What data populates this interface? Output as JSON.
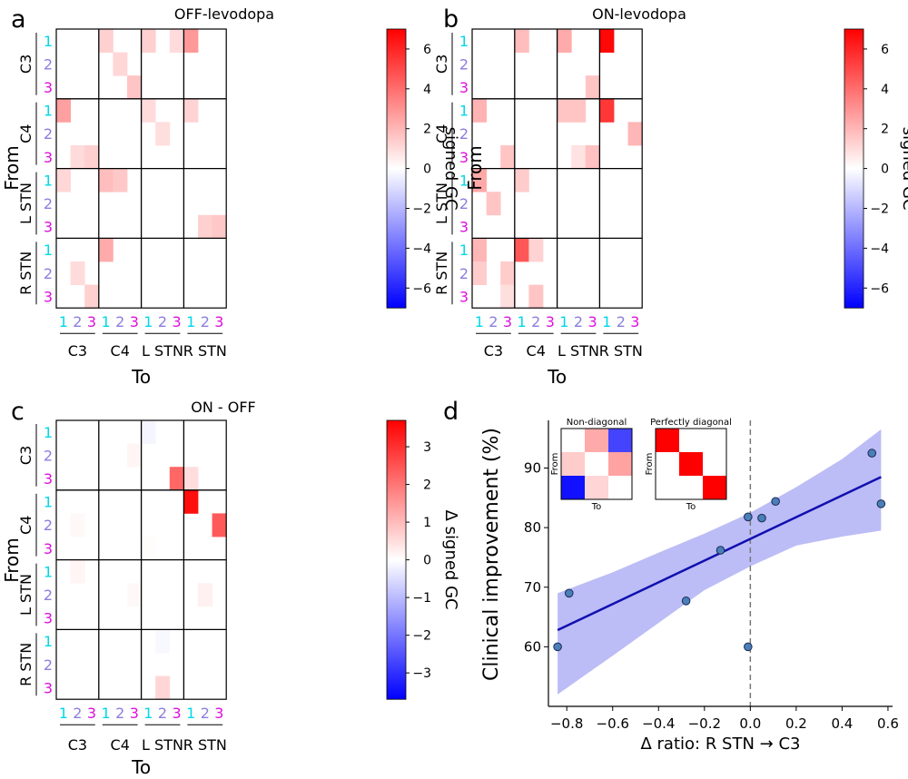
{
  "figure": {
    "panel_letters": [
      "a",
      "b",
      "c",
      "d"
    ]
  },
  "chart_data": [
    {
      "type": "heatmap",
      "panel": "a",
      "title": "OFF-levodopa",
      "xlabel": "To",
      "ylabel": "From",
      "groups": [
        "C3",
        "C4",
        "L STN",
        "R STN"
      ],
      "row_groups": [
        "C3",
        "C4",
        "L STN",
        "R STN"
      ],
      "tick_labels": [
        "1",
        "2",
        "3"
      ],
      "colorbar": {
        "label": "signed GC",
        "vmin": -7,
        "vmax": 7,
        "ticks": [
          6,
          4,
          2,
          0,
          -2,
          -4,
          -6
        ],
        "tick_labels": [
          "6",
          "4",
          "2",
          "0",
          "−2",
          "−4",
          "−6"
        ]
      },
      "matrix": [
        [
          0,
          0,
          0,
          1.3,
          0,
          0,
          1.3,
          0,
          1.0,
          2.8,
          0,
          0
        ],
        [
          0,
          0,
          0,
          0,
          1.1,
          0,
          0,
          0,
          0,
          0,
          0,
          0
        ],
        [
          0,
          0,
          0,
          0,
          0,
          1.6,
          0,
          0,
          0,
          0,
          0,
          0
        ],
        [
          2.6,
          0,
          0,
          0,
          0,
          0,
          1.0,
          0,
          0,
          1.2,
          0,
          0
        ],
        [
          0,
          0,
          0,
          0,
          0,
          0,
          0,
          0.9,
          0,
          0,
          0,
          0
        ],
        [
          0,
          1.0,
          1.3,
          0,
          0,
          0,
          0,
          0,
          0,
          0,
          0,
          0
        ],
        [
          1.1,
          0,
          0,
          1.8,
          1.5,
          0,
          0,
          0,
          0,
          0,
          0,
          0
        ],
        [
          0,
          0,
          0,
          0,
          0,
          0,
          0,
          0,
          0,
          0,
          0,
          0
        ],
        [
          0,
          0,
          0,
          0,
          0,
          0,
          0,
          0,
          0,
          0,
          1.3,
          1.5
        ],
        [
          0,
          0,
          0,
          2.3,
          0,
          0,
          0,
          0,
          0,
          0,
          0,
          0
        ],
        [
          0,
          1.0,
          0,
          0,
          0,
          0,
          0,
          0,
          0,
          0,
          0,
          0
        ],
        [
          0,
          0,
          1.3,
          0,
          0,
          0,
          0,
          0,
          0,
          0,
          0,
          0
        ]
      ]
    },
    {
      "type": "heatmap",
      "panel": "b",
      "title": "ON-levodopa",
      "xlabel": "To",
      "ylabel": "From",
      "groups": [
        "C3",
        "C4",
        "L STN",
        "R STN"
      ],
      "row_groups": [
        "C3",
        "C4",
        "L STN",
        "R STN"
      ],
      "tick_labels": [
        "1",
        "2",
        "3"
      ],
      "colorbar": {
        "label": "signed GC",
        "vmin": -7,
        "vmax": 7,
        "ticks": [
          6,
          4,
          2,
          0,
          -2,
          -4,
          -6
        ],
        "tick_labels": [
          "6",
          "4",
          "2",
          "0",
          "−2",
          "−4",
          "−6"
        ]
      },
      "matrix": [
        [
          0,
          0,
          0,
          1.8,
          0,
          0,
          2.3,
          0,
          0,
          6.8,
          0,
          0
        ],
        [
          0,
          0,
          0,
          0,
          0,
          0,
          0,
          0,
          0,
          0,
          0,
          0
        ],
        [
          0,
          0,
          0,
          0,
          0,
          0,
          0,
          0,
          1.6,
          0,
          0,
          0
        ],
        [
          2.1,
          0,
          0,
          0,
          0,
          0,
          1.6,
          1.6,
          0,
          5.5,
          0,
          0
        ],
        [
          0,
          0,
          0,
          0,
          0,
          0,
          0,
          0,
          0,
          0,
          0,
          2.0
        ],
        [
          0,
          0,
          1.6,
          0,
          0,
          0,
          0,
          0.8,
          1.7,
          0,
          0,
          0
        ],
        [
          2.4,
          0,
          0,
          1.4,
          0,
          0,
          0,
          0,
          0,
          0,
          0,
          0
        ],
        [
          0,
          1.6,
          0,
          0,
          0,
          0,
          0,
          0,
          0,
          0,
          0,
          0
        ],
        [
          0,
          0,
          0,
          0,
          0,
          0,
          0,
          0,
          0,
          0,
          0,
          0
        ],
        [
          2.0,
          0,
          0,
          4.6,
          1.2,
          0,
          0,
          0,
          0,
          0,
          0,
          0
        ],
        [
          1.4,
          0,
          1.4,
          0,
          0,
          0,
          0,
          0,
          0,
          0,
          0,
          0
        ],
        [
          0,
          0,
          0.9,
          0,
          1.6,
          0,
          0,
          0,
          0,
          0,
          0,
          0
        ]
      ]
    },
    {
      "type": "heatmap",
      "panel": "c",
      "title": "ON - OFF",
      "xlabel": "To",
      "ylabel": "From",
      "groups": [
        "C3",
        "C4",
        "L STN",
        "R STN"
      ],
      "row_groups": [
        "C3",
        "C4",
        "L STN",
        "R STN"
      ],
      "tick_labels": [
        "1",
        "2",
        "3"
      ],
      "colorbar": {
        "label": "Δ signed GC",
        "vmin": -3.7,
        "vmax": 3.7,
        "ticks": [
          3,
          2,
          1,
          0,
          -1,
          -2,
          -3
        ],
        "tick_labels": [
          "3",
          "2",
          "1",
          "0",
          "−1",
          "−2",
          "−3"
        ]
      },
      "matrix": [
        [
          0,
          0,
          0,
          0,
          0,
          0,
          -0.15,
          0,
          0,
          0,
          0,
          0
        ],
        [
          0,
          0,
          0,
          0,
          0,
          0.15,
          0,
          0,
          0,
          0,
          0,
          0
        ],
        [
          0,
          0,
          0,
          0,
          0,
          0,
          0,
          0,
          2.2,
          0.5,
          0,
          0
        ],
        [
          0,
          0,
          0,
          0,
          0,
          0,
          0,
          0,
          0,
          3.5,
          0,
          0
        ],
        [
          0,
          0.1,
          0,
          0,
          0,
          0,
          0,
          0,
          0,
          0,
          0,
          2.4
        ],
        [
          0,
          0,
          0,
          0,
          0,
          0,
          0.05,
          0,
          0,
          0,
          0,
          0
        ],
        [
          0,
          0.15,
          0,
          0,
          0,
          0,
          0,
          0,
          0,
          0,
          0,
          0
        ],
        [
          0,
          0,
          0,
          0,
          0,
          0.1,
          0,
          0,
          0,
          0,
          0.2,
          0
        ],
        [
          0,
          0,
          0,
          0,
          0,
          0,
          0,
          0,
          0,
          0,
          0,
          0
        ],
        [
          0,
          0,
          0,
          0,
          0,
          0,
          0,
          -0.1,
          0,
          0,
          0,
          0
        ],
        [
          0,
          0,
          0,
          0,
          0,
          0,
          0,
          0,
          0,
          0,
          0,
          0
        ],
        [
          0,
          0,
          0,
          0,
          0,
          0,
          0,
          0.6,
          0,
          0,
          0,
          0
        ]
      ]
    },
    {
      "type": "scatter",
      "panel": "d",
      "xlabel": "Δ ratio: R STN → C3",
      "ylabel": "Clinical improvement (%)",
      "xlim": [
        -0.88,
        0.62
      ],
      "ylim": [
        50,
        98
      ],
      "xticks": [
        -0.8,
        -0.6,
        -0.4,
        -0.2,
        0.0,
        0.2,
        0.4,
        0.6
      ],
      "xtick_labels": [
        "−0.8",
        "−0.6",
        "−0.4",
        "−0.2",
        "0.0",
        "0.2",
        "0.4",
        "0.6"
      ],
      "yticks": [
        60,
        70,
        80,
        90
      ],
      "ytick_labels": [
        "60",
        "70",
        "80",
        "90"
      ],
      "points": [
        {
          "x": -0.84,
          "y": 60.0
        },
        {
          "x": -0.79,
          "y": 69.0
        },
        {
          "x": -0.28,
          "y": 67.7
        },
        {
          "x": -0.13,
          "y": 76.2
        },
        {
          "x": -0.01,
          "y": 60.0
        },
        {
          "x": -0.01,
          "y": 81.8
        },
        {
          "x": 0.05,
          "y": 81.6
        },
        {
          "x": 0.11,
          "y": 84.4
        },
        {
          "x": 0.53,
          "y": 92.5
        },
        {
          "x": 0.57,
          "y": 84.0
        }
      ],
      "fit_line": {
        "x": [
          -0.84,
          0.57
        ],
        "y": [
          62.8,
          88.5
        ]
      },
      "confidence_band": {
        "x": [
          -0.84,
          -0.6,
          -0.4,
          -0.2,
          0.0,
          0.2,
          0.4,
          0.57
        ],
        "upper": [
          69.0,
          72.5,
          75.8,
          79.0,
          82.5,
          86.8,
          91.5,
          96.5
        ],
        "lower": [
          52.0,
          58.5,
          64.0,
          69.5,
          73.5,
          77.0,
          78.5,
          79.5
        ]
      },
      "zero_line_x": 0,
      "insets": [
        {
          "title": "Non-diagonal",
          "xlabel": "To",
          "ylabel": "From",
          "vmin": -3,
          "vmax": 3,
          "matrix": [
            [
              0,
              1.0,
              -2.2
            ],
            [
              0.6,
              0,
              1.1
            ],
            [
              -2.8,
              0.5,
              0
            ]
          ]
        },
        {
          "title": "Perfectly diagonal",
          "xlabel": "To",
          "ylabel": "From",
          "vmin": -3,
          "vmax": 3,
          "matrix": [
            [
              3,
              0,
              0
            ],
            [
              0,
              3,
              0
            ],
            [
              0,
              0,
              3
            ]
          ]
        }
      ]
    }
  ]
}
